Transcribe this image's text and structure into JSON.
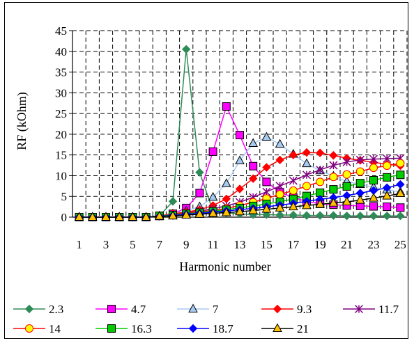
{
  "chart_data": {
    "type": "line",
    "title": "",
    "xlabel": "Harmonic number",
    "ylabel": "RF (kOhm)",
    "x": [
      1,
      2,
      3,
      4,
      5,
      6,
      7,
      8,
      9,
      10,
      11,
      12,
      13,
      14,
      15,
      16,
      17,
      18,
      19,
      20,
      21,
      22,
      23,
      24,
      25
    ],
    "xtick_labels": [
      "1",
      "3",
      "5",
      "7",
      "9",
      "11",
      "13",
      "15",
      "17",
      "19",
      "21",
      "23",
      "25"
    ],
    "ytick_labels": [
      "0",
      "5",
      "10",
      "15",
      "20",
      "25",
      "30",
      "35",
      "40",
      "45"
    ],
    "ylim": [
      0,
      45
    ],
    "grid": "dashed",
    "legend_position": "bottom",
    "series": [
      {
        "name": "2.3",
        "color": "#2e8b57",
        "marker": "diamond",
        "values": [
          0,
          0,
          0,
          0,
          0,
          0,
          0.3,
          3.8,
          40.5,
          10.8,
          1.5,
          1,
          0.8,
          0.6,
          0.6,
          0.5,
          0.5,
          0.4,
          0.4,
          0.4,
          0.3,
          0.3,
          0.3,
          0.3,
          0.3
        ]
      },
      {
        "name": "4.7",
        "color": "#ff00ff",
        "marker": "square",
        "values": [
          0,
          0,
          0,
          0,
          0,
          0,
          0.3,
          0.8,
          2.2,
          5.8,
          15.8,
          26.7,
          19.8,
          12.3,
          8.5,
          6,
          4.7,
          3.8,
          3.2,
          3,
          2.8,
          2.7,
          2.6,
          2.5,
          2.3
        ]
      },
      {
        "name": "7",
        "color": "#a6caf0",
        "marker": "triangle",
        "values": [
          0,
          0,
          0,
          0,
          0,
          0,
          0.3,
          0.8,
          1.5,
          2.5,
          4.8,
          8.1,
          13.6,
          17.8,
          19.3,
          17.6,
          15.2,
          12.9,
          11.2,
          9.9,
          8.6,
          7.9,
          7.2,
          6.6,
          6.1
        ]
      },
      {
        "name": "9.3",
        "color": "#ff0000",
        "marker": "diamond",
        "values": [
          0,
          0,
          0,
          0,
          0,
          0,
          0.3,
          0.8,
          1.2,
          1.8,
          2.8,
          4.4,
          6.8,
          9.3,
          12,
          13.8,
          15,
          15.6,
          15.5,
          14.9,
          14.2,
          13.7,
          13.2,
          12.8,
          12.4
        ]
      },
      {
        "name": "11.7",
        "color": "#800080",
        "marker": "star",
        "values": [
          0,
          0,
          0,
          0,
          0,
          0,
          0.3,
          0.6,
          1,
          1.5,
          2,
          2.7,
          3.6,
          4.8,
          6.1,
          7.5,
          8.8,
          10.2,
          11.4,
          12.5,
          13.3,
          13.8,
          14,
          14.1,
          14.2
        ]
      },
      {
        "name": "14",
        "color": "#ff0000",
        "marker": "circle",
        "fill": "#ffff00",
        "values": [
          0,
          0,
          0,
          0,
          0,
          0,
          0.3,
          0.6,
          1,
          1.3,
          1.6,
          2.1,
          2.8,
          3.6,
          4.5,
          5.5,
          6.4,
          7.5,
          8.5,
          9.7,
          10.3,
          11,
          11.9,
          12.4,
          13
        ]
      },
      {
        "name": "16.3",
        "color": "#00cc00",
        "marker": "square",
        "values": [
          0,
          0,
          0,
          0,
          0,
          0,
          0.3,
          0.5,
          0.8,
          1.1,
          1.4,
          1.8,
          2.2,
          2.7,
          3.2,
          3.7,
          4.4,
          5.1,
          5.9,
          6.7,
          7.4,
          8.2,
          8.9,
          9.6,
          10.2
        ]
      },
      {
        "name": "18.7",
        "color": "#0000ff",
        "marker": "diamond",
        "values": [
          0,
          0,
          0,
          0,
          0,
          0,
          0.2,
          0.4,
          0.7,
          0.9,
          1.2,
          1.5,
          1.8,
          2.1,
          2.5,
          2.9,
          3.3,
          3.8,
          4.3,
          4.7,
          5.2,
          5.8,
          6.4,
          7.1,
          7.9
        ]
      },
      {
        "name": "21",
        "color": "#000000",
        "marker": "triangle",
        "fill": "#ffc000",
        "values": [
          0,
          0,
          0,
          0,
          0,
          0,
          0.2,
          0.3,
          0.5,
          0.7,
          0.9,
          1.1,
          1.3,
          1.6,
          1.9,
          2.2,
          2.5,
          2.8,
          3.1,
          3.4,
          3.7,
          4.1,
          4.6,
          5.1,
          5.7
        ]
      }
    ]
  }
}
